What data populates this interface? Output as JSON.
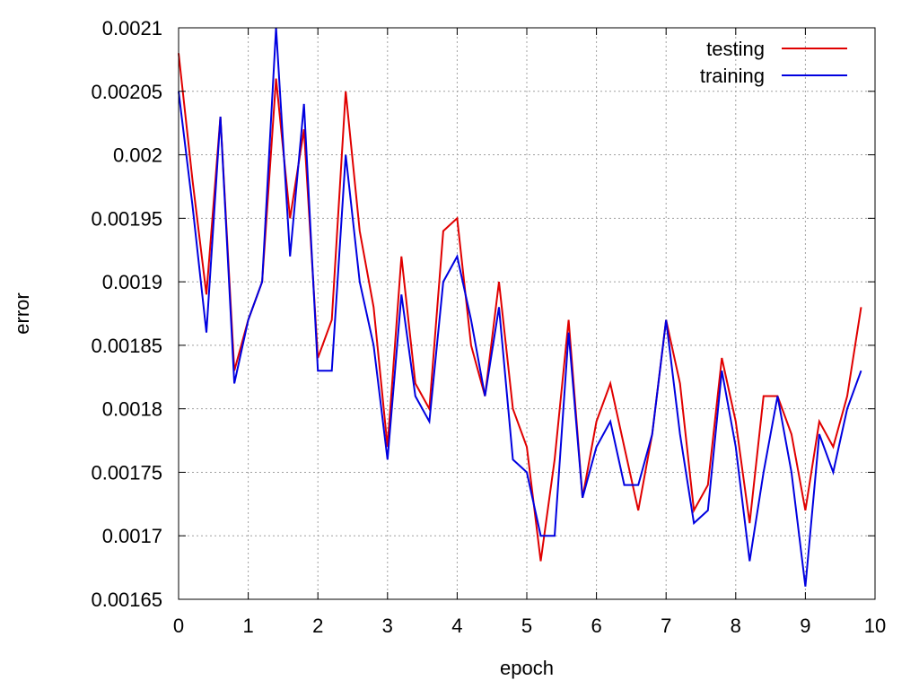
{
  "chart_data": {
    "type": "line",
    "xlabel": "epoch",
    "ylabel": "error",
    "xlim": [
      0,
      10
    ],
    "ylim": [
      0.00165,
      0.0021
    ],
    "grid": true,
    "legend_position": "top-right",
    "x_ticks": [
      "0",
      "1",
      "2",
      "3",
      "4",
      "5",
      "6",
      "7",
      "8",
      "9",
      "10"
    ],
    "y_ticks": [
      "0.00165",
      "0.0017",
      "0.00175",
      "0.0018",
      "0.00185",
      "0.0019",
      "0.00195",
      "0.002",
      "0.00205",
      "0.0021"
    ],
    "x_tick_values": [
      0,
      1,
      2,
      3,
      4,
      5,
      6,
      7,
      8,
      9,
      10
    ],
    "y_tick_values": [
      0.00165,
      0.0017,
      0.00175,
      0.0018,
      0.00185,
      0.0019,
      0.00195,
      0.002,
      0.00205,
      0.0021
    ],
    "x": [
      0,
      0.2,
      0.4,
      0.6,
      0.8,
      1.0,
      1.2,
      1.4,
      1.6,
      1.8,
      2.0,
      2.2,
      2.4,
      2.6,
      2.8,
      3.0,
      3.2,
      3.4,
      3.6,
      3.8,
      4.0,
      4.2,
      4.4,
      4.6,
      4.8,
      5.0,
      5.2,
      5.4,
      5.6,
      5.8,
      6.0,
      6.2,
      6.4,
      6.6,
      6.8,
      7.0,
      7.2,
      7.4,
      7.6,
      7.8,
      8.0,
      8.2,
      8.4,
      8.6,
      8.8,
      9.0,
      9.2,
      9.4,
      9.6,
      9.8
    ],
    "series": [
      {
        "name": "testing",
        "color": "#e00000",
        "values": [
          0.00208,
          0.00198,
          0.00189,
          0.00203,
          0.00183,
          0.00187,
          0.0019,
          0.00206,
          0.00195,
          0.00202,
          0.00184,
          0.00187,
          0.00205,
          0.00194,
          0.00188,
          0.00177,
          0.00192,
          0.00182,
          0.0018,
          0.00194,
          0.00195,
          0.00185,
          0.00181,
          0.0019,
          0.0018,
          0.00177,
          0.00168,
          0.00176,
          0.00187,
          0.00173,
          0.00179,
          0.00182,
          0.00177,
          0.00172,
          0.00178,
          0.00187,
          0.00182,
          0.00172,
          0.00174,
          0.00184,
          0.00179,
          0.00171,
          0.00181,
          0.00181,
          0.00178,
          0.00172,
          0.00179,
          0.00177,
          0.00181,
          0.00188
        ]
      },
      {
        "name": "training",
        "color": "#0000e0",
        "values": [
          0.00205,
          0.00196,
          0.00186,
          0.00203,
          0.00182,
          0.00187,
          0.0019,
          0.0021,
          0.00192,
          0.00204,
          0.00183,
          0.00183,
          0.002,
          0.0019,
          0.00185,
          0.00176,
          0.00189,
          0.00181,
          0.00179,
          0.0019,
          0.00192,
          0.00187,
          0.00181,
          0.00188,
          0.00176,
          0.00175,
          0.0017,
          0.0017,
          0.00186,
          0.00173,
          0.00177,
          0.00179,
          0.00174,
          0.00174,
          0.00178,
          0.00187,
          0.00178,
          0.00171,
          0.00172,
          0.00183,
          0.00177,
          0.00168,
          0.00175,
          0.00181,
          0.00175,
          0.00166,
          0.00178,
          0.00175,
          0.0018,
          0.00183
        ]
      }
    ]
  }
}
